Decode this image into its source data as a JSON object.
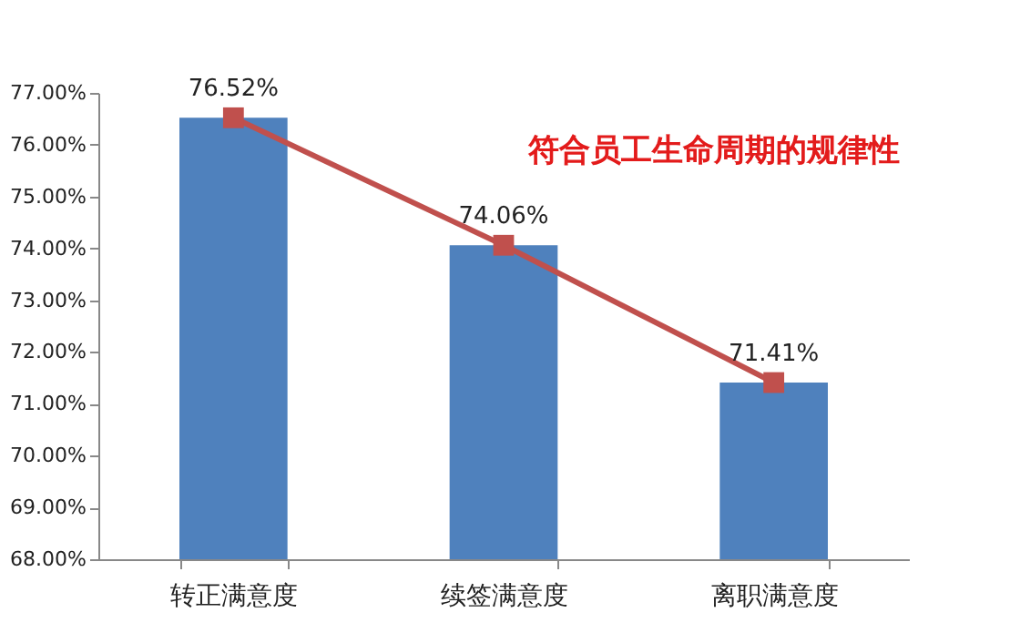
{
  "chart_data": {
    "type": "bar",
    "categories": [
      "转正满意度",
      "续签满意度",
      "离职满意度"
    ],
    "series": [
      {
        "color": "#4f81bd",
        "values": [
          76.52,
          74.06,
          71.41
        ]
      },
      {
        "type": "line",
        "color": "#c0504d",
        "values": [
          76.52,
          74.06,
          71.41
        ],
        "marker": "square",
        "value_labels": [
          "76.52%",
          "74.06%",
          "71.41%"
        ]
      }
    ],
    "ylim": [
      68,
      77
    ],
    "yticks": [
      {
        "value": 68,
        "label": "68.00%"
      },
      {
        "value": 69,
        "label": "69.00%"
      },
      {
        "value": 70,
        "label": "70.00%"
      },
      {
        "value": 71,
        "label": "71.00%"
      },
      {
        "value": 72,
        "label": "72.00%"
      },
      {
        "value": 73,
        "label": "73.00%"
      },
      {
        "value": 74,
        "label": "74.00%"
      },
      {
        "value": 75,
        "label": "75.00%"
      },
      {
        "value": 76,
        "label": "76.00%"
      },
      {
        "value": 77,
        "label": "77.00%"
      }
    ],
    "grid": false,
    "annotations": [
      "符合员工生命周期的规律性"
    ]
  }
}
